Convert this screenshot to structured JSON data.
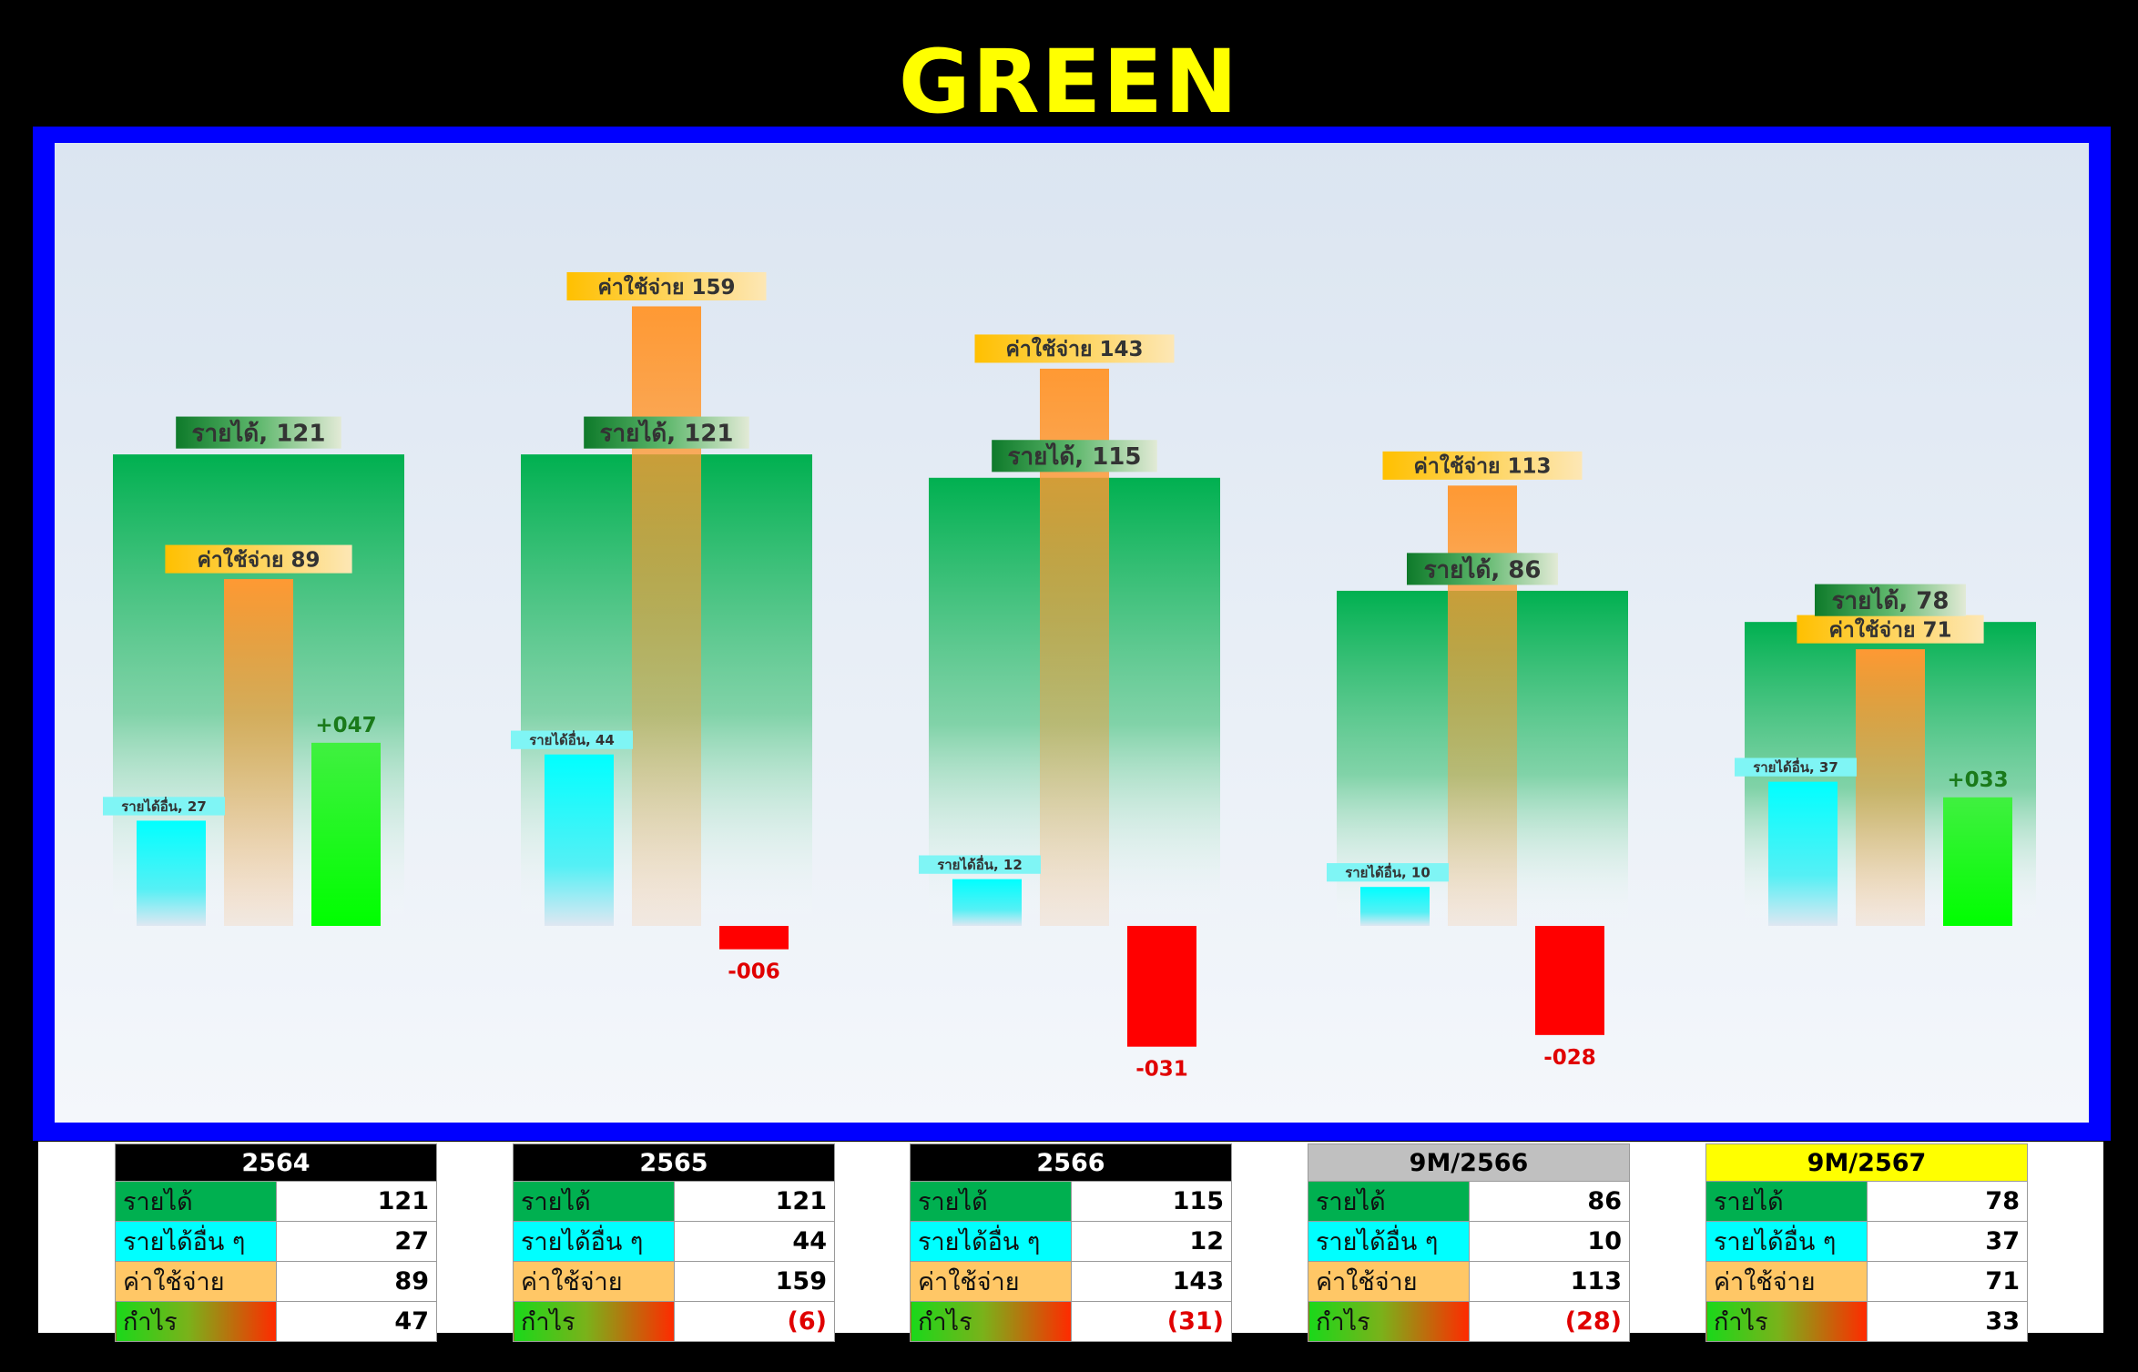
{
  "title": "GREEN",
  "colors": {
    "revenue": "#00b050",
    "other_income": "#00ffff",
    "expense": "#ff9933",
    "profit_positive": "#00ff00",
    "profit_negative": "#ff0000",
    "title": "#ffff00",
    "frame": "#0000ff"
  },
  "chart_data": {
    "type": "bar",
    "categories": [
      "2564",
      "2565",
      "2566",
      "9M/2566",
      "9M/2567"
    ],
    "series": [
      {
        "key": "revenue",
        "label_text": "รายได้",
        "values": [
          121,
          121,
          115,
          86,
          78
        ],
        "labels": [
          "รายได้, 121",
          "รายได้, 121",
          "รายได้, 115",
          "รายได้, 86",
          "รายได้, 78"
        ]
      },
      {
        "key": "other_income",
        "label_text": "รายได้อื่น",
        "values": [
          27,
          44,
          12,
          10,
          37
        ],
        "labels": [
          "รายได้อื่น, 27",
          "รายได้อื่น, 44",
          "รายได้อื่น, 12",
          "รายได้อื่น, 10",
          "รายได้อื่น, 37"
        ]
      },
      {
        "key": "expense",
        "label_text": "ค่าใช้จ่าย",
        "values": [
          89,
          159,
          143,
          113,
          71
        ],
        "labels": [
          "ค่าใช้จ่าย  89",
          "ค่าใช้จ่าย  159",
          "ค่าใช้จ่าย  143",
          "ค่าใช้จ่าย  113",
          "ค่าใช้จ่าย  71"
        ]
      },
      {
        "key": "profit",
        "label_text": "กำไร",
        "values": [
          47,
          -6,
          -31,
          -28,
          33
        ],
        "labels": [
          "+047",
          "-006",
          "-031",
          "-028",
          "+033"
        ]
      }
    ],
    "ylim": [
      -40,
      180
    ],
    "grid": false,
    "legend": "none"
  },
  "tables": [
    {
      "header": "2564",
      "header_bg": "#000000",
      "header_fg": "#ffffff",
      "rows": [
        {
          "label": "รายได้",
          "value": "121",
          "neg": false
        },
        {
          "label": "รายได้อื่น ๆ",
          "value": "27",
          "neg": false
        },
        {
          "label": "ค่าใช้จ่าย",
          "value": "89",
          "neg": false
        },
        {
          "label": "กำไร",
          "value": "47",
          "neg": false
        }
      ]
    },
    {
      "header": "2565",
      "header_bg": "#000000",
      "header_fg": "#ffffff",
      "rows": [
        {
          "label": "รายได้",
          "value": "121",
          "neg": false
        },
        {
          "label": "รายได้อื่น ๆ",
          "value": "44",
          "neg": false
        },
        {
          "label": "ค่าใช้จ่าย",
          "value": "159",
          "neg": false
        },
        {
          "label": "กำไร",
          "value": "(6)",
          "neg": true
        }
      ]
    },
    {
      "header": "2566",
      "header_bg": "#000000",
      "header_fg": "#ffffff",
      "rows": [
        {
          "label": "รายได้",
          "value": "115",
          "neg": false
        },
        {
          "label": "รายได้อื่น ๆ",
          "value": "12",
          "neg": false
        },
        {
          "label": "ค่าใช้จ่าย",
          "value": "143",
          "neg": false
        },
        {
          "label": "กำไร",
          "value": "(31)",
          "neg": true
        }
      ]
    },
    {
      "header": "9M/2566",
      "header_bg": "#c0c0c0",
      "header_fg": "#000000",
      "rows": [
        {
          "label": "รายได้",
          "value": "86",
          "neg": false
        },
        {
          "label": "รายได้อื่น ๆ",
          "value": "10",
          "neg": false
        },
        {
          "label": "ค่าใช้จ่าย",
          "value": "113",
          "neg": false
        },
        {
          "label": "กำไร",
          "value": "(28)",
          "neg": true
        }
      ]
    },
    {
      "header": "9M/2567",
      "header_bg": "#ffff00",
      "header_fg": "#000000",
      "rows": [
        {
          "label": "รายได้",
          "value": "78",
          "neg": false
        },
        {
          "label": "รายได้อื่น ๆ",
          "value": "37",
          "neg": false
        },
        {
          "label": "ค่าใช้จ่าย",
          "value": "71",
          "neg": false
        },
        {
          "label": "กำไร",
          "value": "33",
          "neg": false
        }
      ]
    }
  ]
}
